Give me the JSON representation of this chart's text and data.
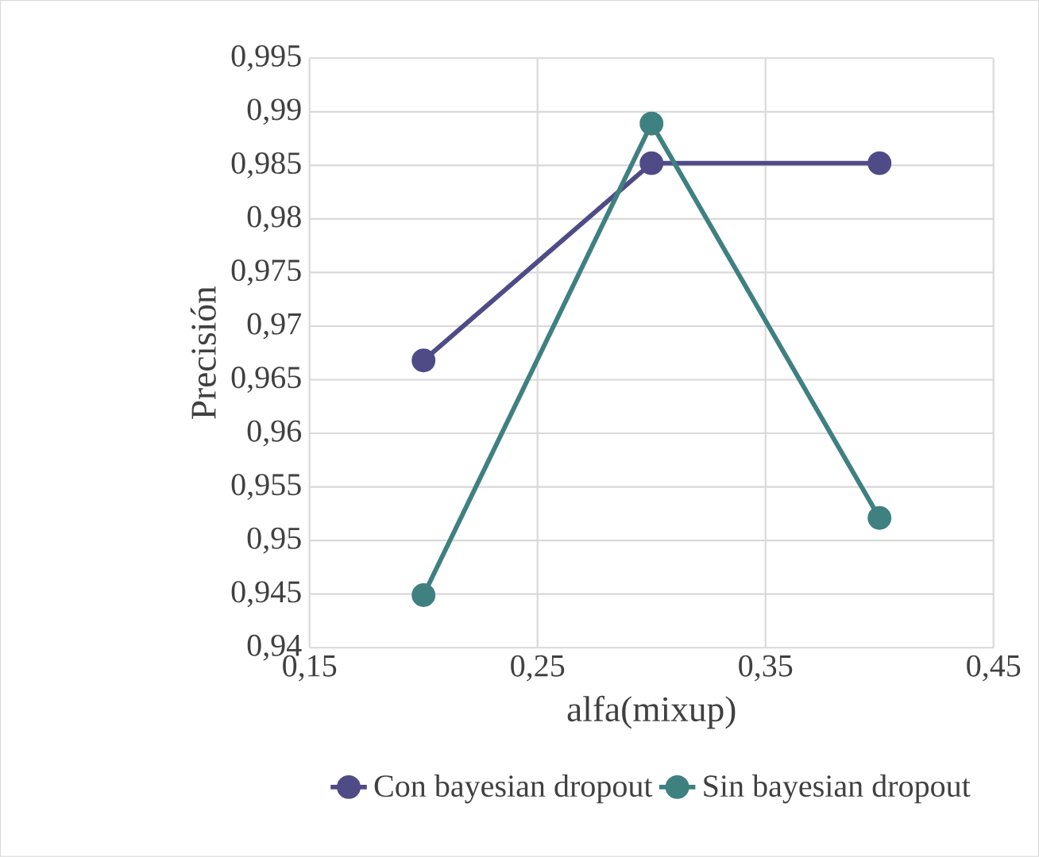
{
  "chart_data": {
    "type": "line",
    "xlabel": "alfa(mixup)",
    "ylabel": "Precisión",
    "x": [
      0.2,
      0.3,
      0.4
    ],
    "series": [
      {
        "name": "Con bayesian dropout",
        "color": "#4f4b87",
        "values": [
          0.9668,
          0.9852,
          0.9852
        ]
      },
      {
        "name": "Sin bayesian dropout",
        "color": "#3f8080",
        "values": [
          0.9449,
          0.9889,
          0.9521
        ]
      }
    ],
    "xlim": [
      0.15,
      0.45
    ],
    "xticks": [
      {
        "value": 0.15,
        "label": "0,15"
      },
      {
        "value": 0.25,
        "label": "0,25"
      },
      {
        "value": 0.35,
        "label": "0,35"
      },
      {
        "value": 0.45,
        "label": "0,45"
      }
    ],
    "ylim": [
      0.94,
      0.995
    ],
    "yticks": [
      {
        "value": 0.94,
        "label": "0,94"
      },
      {
        "value": 0.945,
        "label": "0,945"
      },
      {
        "value": 0.95,
        "label": "0,95"
      },
      {
        "value": 0.955,
        "label": "0,955"
      },
      {
        "value": 0.96,
        "label": "0,96"
      },
      {
        "value": 0.965,
        "label": "0,965"
      },
      {
        "value": 0.97,
        "label": "0,97"
      },
      {
        "value": 0.975,
        "label": "0,975"
      },
      {
        "value": 0.98,
        "label": "0,98"
      },
      {
        "value": 0.985,
        "label": "0,985"
      },
      {
        "value": 0.99,
        "label": "0,99"
      },
      {
        "value": 0.995,
        "label": "0,995"
      }
    ],
    "grid": true,
    "legend": "bottom",
    "marker": "circle",
    "line_style": "solid"
  }
}
